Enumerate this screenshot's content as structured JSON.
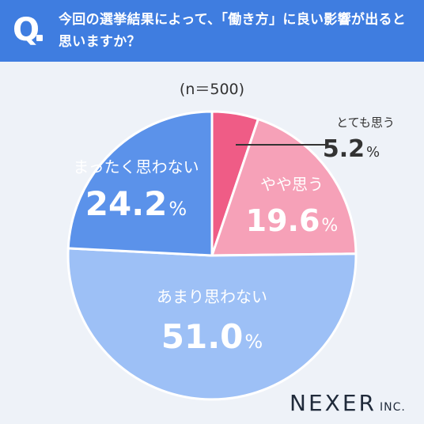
{
  "header": {
    "q_mark": "Q",
    "question": "今回の選挙結果によって、「働き方」に良い影響が出ると思いますか？"
  },
  "sample": "(n＝500)",
  "logo": {
    "main": "NEXER",
    "inc": "INC."
  },
  "chart_data": {
    "type": "pie",
    "title": "今回の選挙結果によって、「働き方」に良い影響が出ると思いますか？",
    "sample_size": "(n＝500)",
    "slices": [
      {
        "label": "とても思う",
        "value": 5.2,
        "display": "5.2",
        "unit": "%",
        "color": "#ef5c86"
      },
      {
        "label": "やや思う",
        "value": 19.6,
        "display": "19.6",
        "unit": "%",
        "color": "#f6a1b8"
      },
      {
        "label": "あまり思わない",
        "value": 51.0,
        "display": "51.0",
        "unit": "%",
        "color": "#9dc0f6"
      },
      {
        "label": "まったく思わない",
        "value": 24.2,
        "display": "24.2",
        "unit": "%",
        "color": "#5b92ea"
      }
    ],
    "start": "top",
    "direction": "clockwise"
  }
}
